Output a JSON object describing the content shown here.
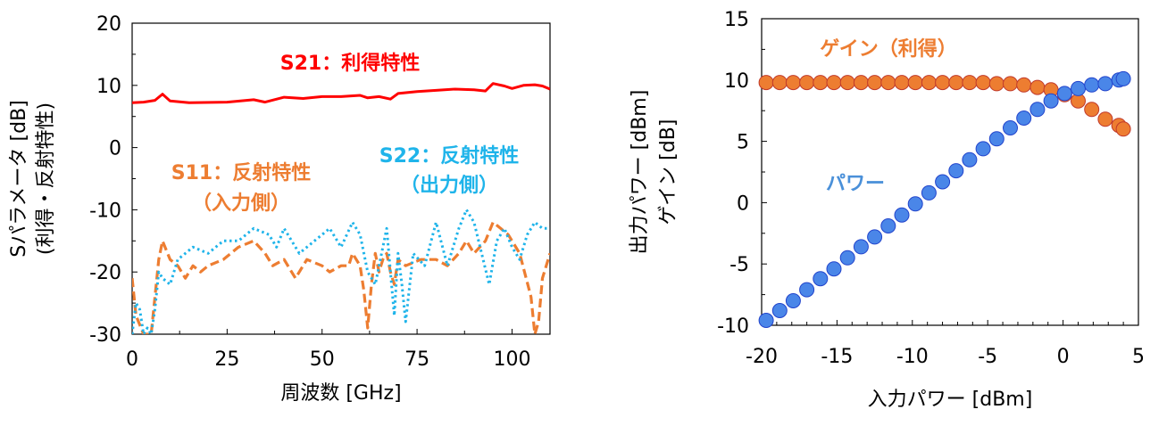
{
  "chart_data": [
    {
      "type": "line",
      "xlabel": "周波数 [GHz]",
      "ylabel": [
        "Sパラメータ [dB]",
        "(利得・反射特性)"
      ],
      "xlim": [
        0,
        110
      ],
      "ylim": [
        -30,
        20
      ],
      "xticks": [
        0,
        25,
        50,
        75,
        100
      ],
      "yticks": [
        20,
        10,
        0,
        -10,
        -20,
        -30
      ],
      "grid": false,
      "annotations": [
        {
          "name": "s21",
          "lines": [
            "S21：利得特性"
          ],
          "color": "#ff0000"
        },
        {
          "name": "s11",
          "lines": [
            "S11：反射特性",
            "（入力側）"
          ],
          "color": "#ed7d31"
        },
        {
          "name": "s22",
          "lines": [
            "S22：反射特性",
            "（出力側）"
          ],
          "color": "#1fb4ea"
        }
      ],
      "series": [
        {
          "label": "S21",
          "color": "#ff0000",
          "style": "solid",
          "x": [
            0,
            3,
            6,
            8,
            10,
            15,
            25,
            32,
            35,
            40,
            45,
            50,
            55,
            60,
            62,
            65,
            68,
            70,
            75,
            80,
            85,
            90,
            93,
            95,
            98,
            100,
            103,
            106,
            108,
            110
          ],
          "y": [
            7.2,
            7.3,
            7.6,
            8.6,
            7.5,
            7.2,
            7.3,
            7.7,
            7.3,
            8.1,
            7.9,
            8.2,
            8.2,
            8.4,
            8.0,
            8.2,
            7.8,
            8.7,
            9.0,
            9.2,
            9.4,
            9.3,
            9.1,
            10.3,
            9.9,
            9.5,
            10.0,
            10.1,
            9.9,
            9.4
          ]
        },
        {
          "label": "S11",
          "color": "#ed7d31",
          "style": "dashed",
          "x": [
            0,
            1,
            3,
            5,
            7,
            8,
            10,
            12,
            14,
            16,
            18,
            20,
            24,
            28,
            32,
            35,
            37,
            40,
            43,
            46,
            50,
            52,
            55,
            57,
            58,
            60,
            61,
            62,
            63,
            64,
            65,
            66,
            67,
            68,
            69,
            70,
            72,
            76,
            80,
            83,
            86,
            88,
            90,
            93,
            95,
            97,
            99,
            102,
            105,
            106,
            107,
            108,
            110
          ],
          "y": [
            -21,
            -27,
            -30,
            -30,
            -18,
            -15,
            -18,
            -19,
            -21,
            -19,
            -20,
            -19,
            -18,
            -16,
            -15,
            -17,
            -19,
            -18,
            -21,
            -18,
            -19,
            -20,
            -19,
            -19,
            -17,
            -19,
            -23,
            -29,
            -22,
            -17,
            -20,
            -18,
            -17,
            -20,
            -22,
            -18,
            -19,
            -18,
            -18,
            -19,
            -17,
            -15,
            -17,
            -15,
            -12,
            -13,
            -14,
            -17,
            -24,
            -30,
            -28,
            -21,
            -17
          ]
        },
        {
          "label": "S22",
          "color": "#1fb4ea",
          "style": "dotted",
          "x": [
            0,
            1,
            2,
            3,
            4,
            5,
            6,
            7,
            8,
            10,
            12,
            14,
            16,
            20,
            24,
            28,
            32,
            36,
            38,
            40,
            44,
            48,
            52,
            55,
            58,
            60,
            62,
            64,
            66,
            67,
            68,
            69,
            70,
            71,
            72,
            74,
            77,
            80,
            83,
            86,
            88,
            90,
            92,
            94,
            96,
            98,
            100,
            102,
            104,
            106,
            108,
            110
          ],
          "y": [
            -30,
            -25,
            -26,
            -30,
            -29,
            -30,
            -26,
            -20,
            -21,
            -22,
            -18,
            -17,
            -16,
            -17,
            -15,
            -15,
            -13,
            -14,
            -16,
            -13,
            -17,
            -15,
            -13,
            -16,
            -12,
            -14,
            -20,
            -22,
            -16,
            -13,
            -20,
            -27,
            -17,
            -22,
            -28,
            -17,
            -19,
            -12,
            -19,
            -13,
            -10,
            -12,
            -17,
            -22,
            -15,
            -13,
            -16,
            -18,
            -14,
            -12,
            -13,
            -13
          ]
        }
      ]
    },
    {
      "type": "scatter",
      "xlabel": "入力パワー [dBm]",
      "ylabel": [
        "出力パワー [dBm]",
        "ゲイン [dB]"
      ],
      "xlim": [
        -20,
        5
      ],
      "ylim": [
        -10,
        15
      ],
      "xticks": [
        -20,
        -15,
        -10,
        -5,
        0,
        5
      ],
      "yticks": [
        15,
        10,
        5,
        0,
        -5,
        -10
      ],
      "grid": false,
      "annotations": [
        {
          "name": "gain",
          "lines": [
            "ゲイン（利得）"
          ],
          "color": "#ed7d31"
        },
        {
          "name": "power",
          "lines": [
            "パワー"
          ],
          "color": "#4a90d9"
        }
      ],
      "series": [
        {
          "label": "ゲイン",
          "color": "#ed7d31",
          "x": [
            -19.7,
            -18.8,
            -17.9,
            -17.0,
            -16.1,
            -15.2,
            -14.3,
            -13.4,
            -12.5,
            -11.6,
            -10.7,
            -9.8,
            -8.9,
            -8.0,
            -7.1,
            -6.2,
            -5.3,
            -4.4,
            -3.5,
            -2.6,
            -1.7,
            -0.8,
            0.1,
            1.0,
            1.9,
            2.8,
            3.7,
            4.0
          ],
          "y": [
            9.8,
            9.8,
            9.8,
            9.8,
            9.8,
            9.8,
            9.8,
            9.8,
            9.8,
            9.8,
            9.8,
            9.8,
            9.8,
            9.8,
            9.8,
            9.8,
            9.8,
            9.7,
            9.7,
            9.6,
            9.4,
            9.2,
            8.8,
            8.3,
            7.6,
            6.8,
            6.3,
            6.0
          ]
        },
        {
          "label": "パワー",
          "color": "#4a86e8",
          "x": [
            -19.7,
            -18.8,
            -17.9,
            -17.0,
            -16.1,
            -15.2,
            -14.3,
            -13.4,
            -12.5,
            -11.6,
            -10.7,
            -9.8,
            -8.9,
            -8.0,
            -7.1,
            -6.2,
            -5.3,
            -4.4,
            -3.5,
            -2.6,
            -1.7,
            -0.8,
            0.1,
            1.0,
            1.9,
            2.8,
            3.7,
            4.0
          ],
          "y": [
            -9.6,
            -8.8,
            -8.0,
            -7.1,
            -6.2,
            -5.4,
            -4.5,
            -3.6,
            -2.8,
            -1.9,
            -1.0,
            -0.1,
            0.8,
            1.7,
            2.6,
            3.5,
            4.4,
            5.2,
            6.1,
            6.9,
            7.6,
            8.3,
            8.9,
            9.3,
            9.6,
            9.7,
            10.0,
            10.1
          ]
        }
      ]
    }
  ]
}
